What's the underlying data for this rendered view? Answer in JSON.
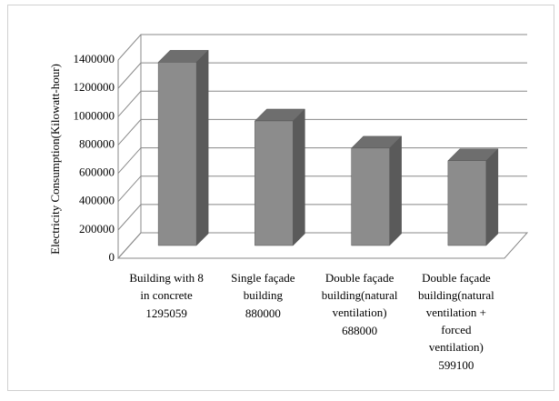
{
  "chart_data": {
    "type": "bar3d",
    "y_axis_label": "Electricity Consumption(Kilowatt-hour)",
    "categories": [
      [
        "Building with 8",
        "in concrete"
      ],
      [
        "Single façade",
        "building"
      ],
      [
        "Double façade",
        "building(natural",
        "ventilation)"
      ],
      [
        "Double façade",
        "building(natural",
        "ventilation +",
        "forced",
        "ventilation)"
      ]
    ],
    "values": [
      1295059,
      880000,
      688000,
      599100
    ],
    "color": "#8c8c8c",
    "ylim": [
      0,
      1400000
    ],
    "yticks": [
      0,
      200000,
      400000,
      600000,
      800000,
      1000000,
      1200000,
      1400000
    ],
    "grid": true
  }
}
